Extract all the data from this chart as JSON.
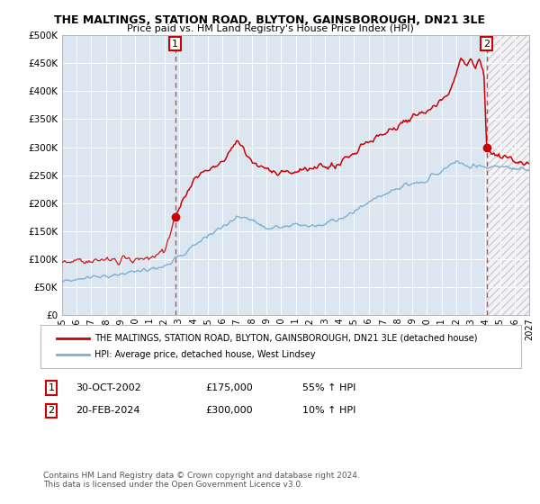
{
  "title1": "THE MALTINGS, STATION ROAD, BLYTON, GAINSBOROUGH, DN21 3LE",
  "title2": "Price paid vs. HM Land Registry's House Price Index (HPI)",
  "legend_line1": "THE MALTINGS, STATION ROAD, BLYTON, GAINSBOROUGH, DN21 3LE (detached house)",
  "legend_line2": "HPI: Average price, detached house, West Lindsey",
  "annotation1_label": "1",
  "annotation1_date": "30-OCT-2002",
  "annotation1_price": "£175,000",
  "annotation1_hpi": "55% ↑ HPI",
  "annotation2_label": "2",
  "annotation2_date": "20-FEB-2024",
  "annotation2_price": "£300,000",
  "annotation2_hpi": "10% ↑ HPI",
  "footer1": "Contains HM Land Registry data © Crown copyright and database right 2024.",
  "footer2": "This data is licensed under the Open Government Licence v3.0.",
  "hpi_color": "#7bafd4",
  "property_color": "#cc0000",
  "plot_bg_color": "#dce6f1",
  "ylim": [
    0,
    500000
  ],
  "yticks": [
    0,
    50000,
    100000,
    150000,
    200000,
    250000,
    300000,
    350000,
    400000,
    450000,
    500000
  ],
  "ytick_labels": [
    "£0",
    "£50K",
    "£100K",
    "£150K",
    "£200K",
    "£250K",
    "£300K",
    "£350K",
    "£400K",
    "£450K",
    "£500K"
  ],
  "xmin": 1995,
  "xmax": 2027,
  "sale1_year": 2002.75,
  "sale1_price": 175000,
  "sale2_year": 2024.083,
  "sale2_price": 300000
}
